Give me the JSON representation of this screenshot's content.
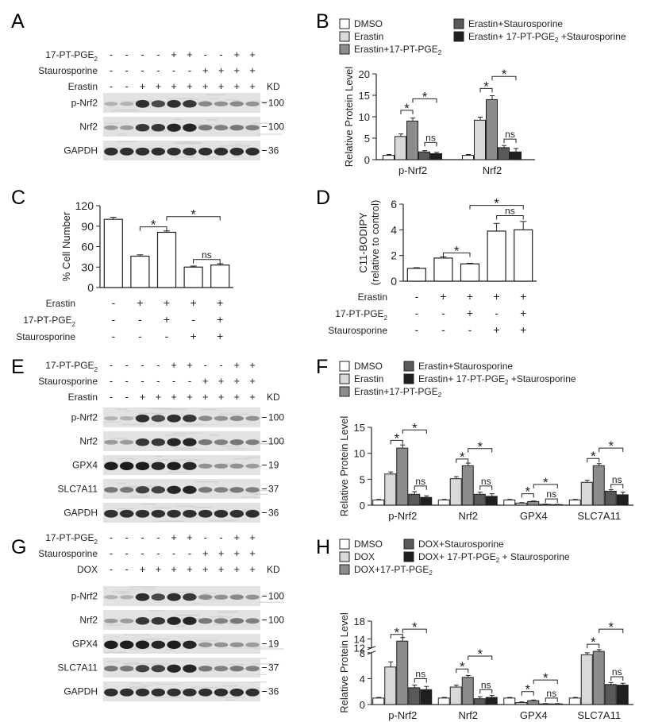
{
  "panel_letters": [
    "A",
    "B",
    "C",
    "D",
    "E",
    "F",
    "G",
    "H"
  ],
  "blot_A": {
    "rows": [
      {
        "label": "17-PT-PGE",
        "sub": "2",
        "signs": [
          "-",
          "-",
          "-",
          "-",
          "+",
          "+",
          "-",
          "-",
          "+",
          "+"
        ]
      },
      {
        "label": "Staurosporine",
        "sub": "",
        "signs": [
          "-",
          "-",
          "-",
          "-",
          "-",
          "-",
          "+",
          "+",
          "+",
          "+"
        ]
      },
      {
        "label": "Erastin",
        "sub": "",
        "signs": [
          "-",
          "-",
          "+",
          "+",
          "+",
          "+",
          "+",
          "+",
          "+",
          "+"
        ]
      }
    ],
    "kd_label": "KD",
    "bands": [
      {
        "label": "p-Nrf2",
        "kd": "100"
      },
      {
        "label": "Nrf2",
        "kd": "100"
      },
      {
        "label": "GAPDH",
        "kd": "36"
      }
    ]
  },
  "blot_E": {
    "rows": [
      {
        "label": "17-PT-PGE",
        "sub": "2",
        "signs": [
          "-",
          "-",
          "-",
          "-",
          "+",
          "+",
          "-",
          "-",
          "+",
          "+"
        ]
      },
      {
        "label": "Staurosporine",
        "sub": "",
        "signs": [
          "-",
          "-",
          "-",
          "-",
          "-",
          "-",
          "+",
          "+",
          "+",
          "+"
        ]
      },
      {
        "label": "Erastin",
        "sub": "",
        "signs": [
          "-",
          "-",
          "+",
          "+",
          "+",
          "+",
          "+",
          "+",
          "+",
          "+"
        ]
      }
    ],
    "kd_label": "KD",
    "bands": [
      {
        "label": "p-Nrf2",
        "kd": "100"
      },
      {
        "label": "Nrf2",
        "kd": "100"
      },
      {
        "label": "GPX4",
        "kd": "19"
      },
      {
        "label": "SLC7A11",
        "kd": "37"
      },
      {
        "label": "GAPDH",
        "kd": "36"
      }
    ]
  },
  "blot_G": {
    "rows": [
      {
        "label": "17-PT-PGE",
        "sub": "2",
        "signs": [
          "-",
          "-",
          "-",
          "-",
          "+",
          "+",
          "-",
          "-",
          "+",
          "+"
        ]
      },
      {
        "label": "Staurosporine",
        "sub": "",
        "signs": [
          "-",
          "-",
          "-",
          "-",
          "-",
          "-",
          "+",
          "+",
          "+",
          "+"
        ]
      },
      {
        "label": "DOX",
        "sub": "",
        "signs": [
          "-",
          "-",
          "+",
          "+",
          "+",
          "+",
          "+",
          "+",
          "+",
          "+"
        ]
      }
    ],
    "kd_label": "KD",
    "bands": [
      {
        "label": "p-Nrf2",
        "kd": "100"
      },
      {
        "label": "Nrf2",
        "kd": "100"
      },
      {
        "label": "GPX4",
        "kd": "19"
      },
      {
        "label": "SLC7A11",
        "kd": "37"
      },
      {
        "label": "GAPDH",
        "kd": "36"
      }
    ]
  },
  "chart_data": [
    {
      "id": "B",
      "type": "bar",
      "legend": [
        {
          "text": "DMSO",
          "sub": ""
        },
        {
          "text": "Erastin",
          "sub": ""
        },
        {
          "text": "Erastin+17-PT-PGE",
          "sub": "2"
        },
        {
          "text": "Erastin+Staurosporine",
          "sub": ""
        },
        {
          "text": "Erastin+ 17-PT-PGE",
          "sub": "2",
          "tail": " +Staurosporine"
        }
      ],
      "colors": [
        "#ffffff",
        "#d9d9d9",
        "#8c8c8c",
        "#595959",
        "#1f1f1f"
      ],
      "ylabel": "Relative Protein Level",
      "ylim": [
        0,
        20
      ],
      "yticks": [
        0,
        5,
        10,
        15,
        20
      ],
      "categories": [
        "p-Nrf2",
        "Nrf2"
      ],
      "values": [
        [
          1,
          5.4,
          9,
          1.8,
          1.4
        ],
        [
          1,
          9.2,
          14,
          2.8,
          1.8
        ]
      ],
      "errors": [
        [
          0.2,
          0.6,
          0.7,
          0.3,
          0.3
        ],
        [
          0.2,
          0.7,
          0.9,
          0.5,
          0.8
        ]
      ],
      "annotations": [
        {
          "cat": 0,
          "a": 1,
          "b": 2,
          "text": "*",
          "level": 11.5
        },
        {
          "cat": 0,
          "a": 2,
          "b": 4,
          "text": "*",
          "level": 14.2
        },
        {
          "cat": 0,
          "a": 3,
          "b": 4,
          "text": "ns",
          "level": 4.0
        },
        {
          "cat": 1,
          "a": 1,
          "b": 2,
          "text": "*",
          "level": 16.6
        },
        {
          "cat": 1,
          "a": 2,
          "b": 4,
          "text": "*",
          "level": 19.4
        },
        {
          "cat": 1,
          "a": 3,
          "b": 4,
          "text": "ns",
          "level": 4.8
        }
      ]
    },
    {
      "id": "C",
      "type": "bar",
      "ylabel": "% Cell Number",
      "ylim": [
        0,
        120
      ],
      "yticks": [
        0,
        30,
        60,
        90,
        120
      ],
      "values": [
        100,
        46,
        81,
        30,
        33
      ],
      "errors": [
        3,
        2,
        2,
        1.5,
        2
      ],
      "conditions": [
        {
          "label": "Erastin",
          "sub": "",
          "signs": [
            "-",
            "+",
            "+",
            "+",
            "+"
          ]
        },
        {
          "label": "17-PT-PGE",
          "sub": "2",
          "signs": [
            "-",
            "-",
            "+",
            "-",
            "+"
          ]
        },
        {
          "label": "Staurosporine",
          "sub": "",
          "signs": [
            "-",
            "-",
            "-",
            "+",
            "+"
          ]
        }
      ],
      "annotations": [
        {
          "a": 1,
          "b": 2,
          "text": "*",
          "level": 89
        },
        {
          "a": 2,
          "b": 4,
          "text": "*",
          "level": 104
        },
        {
          "a": 3,
          "b": 4,
          "text": "ns",
          "level": 41
        }
      ]
    },
    {
      "id": "D",
      "type": "bar",
      "ylabel": "C11-BODIPY",
      "ylabel2": "(relative to control)",
      "ylim": [
        0,
        6
      ],
      "yticks": [
        0,
        2,
        4,
        6
      ],
      "values": [
        1,
        1.8,
        1.35,
        3.9,
        4.0
      ],
      "errors": [
        0.05,
        0.1,
        0.05,
        0.6,
        0.65
      ],
      "conditions": [
        {
          "label": "Erastin",
          "sub": "",
          "signs": [
            "-",
            "+",
            "+",
            "+",
            "+"
          ]
        },
        {
          "label": "17-PT-PGE",
          "sub": "2",
          "signs": [
            "-",
            "-",
            "+",
            "-",
            "+"
          ]
        },
        {
          "label": "Staurosporine",
          "sub": "",
          "signs": [
            "-",
            "-",
            "-",
            "+",
            "+"
          ]
        }
      ],
      "annotations": [
        {
          "a": 1,
          "b": 2,
          "text": "*",
          "level": 2.2
        },
        {
          "a": 3,
          "b": 4,
          "text": "ns",
          "level": 5.1
        },
        {
          "a": 2,
          "b": 4,
          "text": "*",
          "level": 5.9
        }
      ]
    },
    {
      "id": "F",
      "type": "bar",
      "legend": [
        {
          "text": "DMSO",
          "sub": ""
        },
        {
          "text": "Erastin",
          "sub": ""
        },
        {
          "text": "Erastin+17-PT-PGE",
          "sub": "2"
        },
        {
          "text": "Erastin+Staurosporine",
          "sub": ""
        },
        {
          "text": "Erastin+ 17-PT-PGE",
          "sub": "2",
          "tail": " +Staurosporine"
        }
      ],
      "colors": [
        "#ffffff",
        "#d9d9d9",
        "#8c8c8c",
        "#595959",
        "#1f1f1f"
      ],
      "ylabel": "Relative Protein Level",
      "ylim": [
        0,
        15
      ],
      "yticks": [
        0,
        5,
        10,
        15
      ],
      "categories": [
        "p-Nrf2",
        "Nrf2",
        "GPX4",
        "SLC7A11"
      ],
      "values": [
        [
          1,
          6,
          11,
          2.1,
          1.5
        ],
        [
          1,
          5.1,
          7.6,
          2.1,
          1.7
        ],
        [
          1,
          0.4,
          0.7,
          0.15,
          0.1
        ],
        [
          1,
          4.4,
          7.6,
          2.7,
          2.0
        ]
      ],
      "errors": [
        [
          0.1,
          0.4,
          0.6,
          0.5,
          0.3
        ],
        [
          0.1,
          0.4,
          0.5,
          0.4,
          0.5
        ],
        [
          0.1,
          0.1,
          0.1,
          0.05,
          0.05
        ],
        [
          0.1,
          0.4,
          0.4,
          0.3,
          0.5
        ]
      ],
      "annotations": [
        {
          "cat": 0,
          "a": 1,
          "b": 2,
          "text": "*",
          "level": 12.5
        },
        {
          "cat": 0,
          "a": 2,
          "b": 4,
          "text": "*",
          "level": 14.5
        },
        {
          "cat": 0,
          "a": 3,
          "b": 4,
          "text": "ns",
          "level": 3.7
        },
        {
          "cat": 1,
          "a": 1,
          "b": 2,
          "text": "*",
          "level": 8.9
        },
        {
          "cat": 1,
          "a": 2,
          "b": 4,
          "text": "*",
          "level": 10.9
        },
        {
          "cat": 1,
          "a": 3,
          "b": 4,
          "text": "ns",
          "level": 3.7
        },
        {
          "cat": 2,
          "a": 1,
          "b": 2,
          "text": "*",
          "level": 2.2
        },
        {
          "cat": 2,
          "a": 2,
          "b": 4,
          "text": "*",
          "level": 4.0
        },
        {
          "cat": 2,
          "a": 3,
          "b": 4,
          "text": "ns",
          "level": 1.2
        },
        {
          "cat": 3,
          "a": 1,
          "b": 2,
          "text": "*",
          "level": 9.0
        },
        {
          "cat": 3,
          "a": 2,
          "b": 4,
          "text": "*",
          "level": 11.0
        },
        {
          "cat": 3,
          "a": 3,
          "b": 4,
          "text": "ns",
          "level": 4.0
        }
      ]
    },
    {
      "id": "H",
      "type": "bar",
      "legend": [
        {
          "text": "DMSO",
          "sub": ""
        },
        {
          "text": "DOX",
          "sub": ""
        },
        {
          "text": "DOX+17-PT-PGE",
          "sub": "2"
        },
        {
          "text": "DOX+Staurosporine",
          "sub": ""
        },
        {
          "text": "DOX+ 17-PT-PGE",
          "sub": "2",
          "tail": " + Staurosporine"
        }
      ],
      "colors": [
        "#ffffff",
        "#d9d9d9",
        "#8c8c8c",
        "#595959",
        "#1f1f1f"
      ],
      "ylabel": "Relative Protein Level",
      "ylim": [
        0,
        18
      ],
      "yticks": [
        0,
        4,
        8,
        12,
        14,
        18
      ],
      "ytick_labels": [
        "0",
        "4",
        "8",
        "12",
        "14",
        "18"
      ],
      "axis_break": "between 8 and 12 (upper segment 12-18)",
      "categories": [
        "p-Nrf2",
        "Nrf2",
        "GPX4",
        "SLC7A11"
      ],
      "values": [
        [
          1,
          5.8,
          13.5,
          2.6,
          2.3
        ],
        [
          1,
          2.7,
          4.2,
          0.9,
          1.1
        ],
        [
          1,
          0.3,
          0.6,
          0.1,
          0.1
        ],
        [
          1,
          7.7,
          11.2,
          3.1,
          3.0
        ]
      ],
      "errors": [
        [
          0.1,
          0.8,
          0.8,
          0.4,
          0.5
        ],
        [
          0.1,
          0.3,
          0.3,
          0.3,
          0.3
        ],
        [
          0.1,
          0.1,
          0.1,
          0.05,
          0.05
        ],
        [
          0.1,
          0.3,
          0.4,
          0.3,
          0.3
        ]
      ],
      "annotations": [
        {
          "cat": 0,
          "a": 1,
          "b": 2,
          "text": "*",
          "level": 15.0
        },
        {
          "cat": 0,
          "a": 2,
          "b": 4,
          "text": "*",
          "level": 16.2
        },
        {
          "cat": 0,
          "a": 3,
          "b": 4,
          "text": "ns",
          "level": 4.0
        },
        {
          "cat": 1,
          "a": 1,
          "b": 2,
          "text": "*",
          "level": 5.5
        },
        {
          "cat": 1,
          "a": 2,
          "b": 4,
          "text": "*",
          "level": 7.5
        },
        {
          "cat": 1,
          "a": 3,
          "b": 4,
          "text": "ns",
          "level": 2.3
        },
        {
          "cat": 2,
          "a": 1,
          "b": 2,
          "text": "*",
          "level": 2.0
        },
        {
          "cat": 2,
          "a": 2,
          "b": 4,
          "text": "*",
          "level": 3.8
        },
        {
          "cat": 2,
          "a": 3,
          "b": 4,
          "text": "ns",
          "level": 1.0
        },
        {
          "cat": 3,
          "a": 1,
          "b": 2,
          "text": "*",
          "level": 12.8
        },
        {
          "cat": 3,
          "a": 2,
          "b": 4,
          "text": "*",
          "level": 16.2
        },
        {
          "cat": 3,
          "a": 3,
          "b": 4,
          "text": "ns",
          "level": 4.3
        }
      ]
    }
  ]
}
